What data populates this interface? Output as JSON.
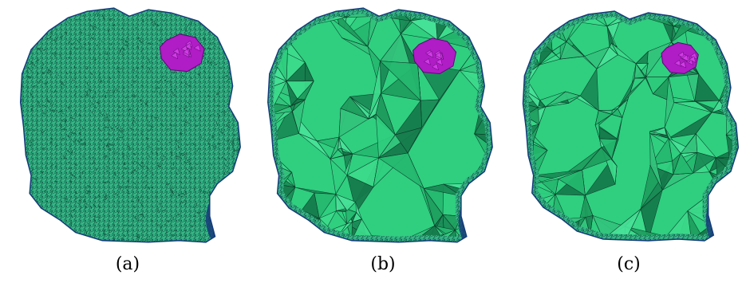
{
  "figure": {
    "panels": [
      {
        "id": "a",
        "caption": "(a)",
        "mesh": "fine",
        "description_level": 0
      },
      {
        "id": "b",
        "caption": "(b)",
        "mesh": "coarse",
        "description_level": 1
      },
      {
        "id": "c",
        "caption": "(c)",
        "mesh": "medium-coarse",
        "description_level": 2
      }
    ],
    "colors": {
      "body_fill": "#2fcf7f",
      "body_dark": "#1a8a55",
      "fine_mesh": "#2aa57a",
      "boundary": "#163a7a",
      "edge": "#0c3d2a",
      "tumor": "#b01cc6",
      "tumor_edge": "#5a0a70",
      "caption_text": "#000000"
    }
  }
}
